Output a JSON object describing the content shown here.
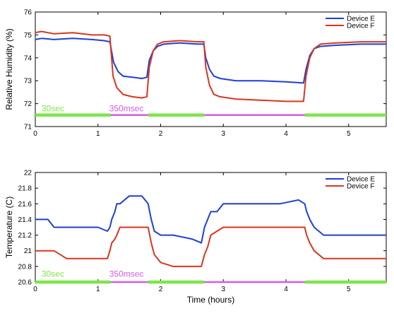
{
  "colors": {
    "device_e": "#1f3fd6",
    "device_f": "#d9361e",
    "mode_30sec": "#7ee64a",
    "mode_350msec": "#d35ae8"
  },
  "chart_data": [
    {
      "type": "line",
      "xlabel": "",
      "ylabel": "Relative Humidity (%)",
      "xlim": [
        0,
        5.6
      ],
      "ylim": [
        71,
        76
      ],
      "x_ticks": [
        "0",
        "1",
        "2",
        "3",
        "4",
        "5"
      ],
      "y_ticks": [
        "71",
        "72",
        "73",
        "74",
        "75",
        "76"
      ],
      "legend_position": "top-right",
      "series": [
        {
          "name": "Device E",
          "x": [
            0,
            0.1,
            0.3,
            0.6,
            0.9,
            1.1,
            1.19,
            1.25,
            1.32,
            1.4,
            1.55,
            1.7,
            1.78,
            1.82,
            1.88,
            1.95,
            2.05,
            2.3,
            2.6,
            2.69,
            2.72,
            2.78,
            2.85,
            2.95,
            3.2,
            3.6,
            4.0,
            4.28,
            4.32,
            4.38,
            4.45,
            4.55,
            4.8,
            5.2,
            5.6
          ],
          "y": [
            74.8,
            74.85,
            74.8,
            74.85,
            74.8,
            74.75,
            74.7,
            73.8,
            73.4,
            73.2,
            73.15,
            73.1,
            73.15,
            73.9,
            74.3,
            74.5,
            74.6,
            74.65,
            74.6,
            74.6,
            74.0,
            73.5,
            73.2,
            73.1,
            73.0,
            73.0,
            72.95,
            72.9,
            73.5,
            74.1,
            74.4,
            74.5,
            74.55,
            74.6,
            74.6
          ]
        },
        {
          "name": "Device F",
          "x": [
            0,
            0.1,
            0.3,
            0.6,
            0.9,
            1.1,
            1.19,
            1.24,
            1.3,
            1.4,
            1.55,
            1.7,
            1.78,
            1.82,
            1.88,
            1.95,
            2.05,
            2.3,
            2.6,
            2.69,
            2.72,
            2.78,
            2.85,
            2.95,
            3.2,
            3.6,
            4.0,
            4.28,
            4.32,
            4.38,
            4.45,
            4.55,
            4.8,
            5.2,
            5.6
          ],
          "y": [
            75.1,
            75.15,
            75.05,
            75.1,
            75.0,
            75.0,
            74.95,
            73.2,
            72.7,
            72.4,
            72.3,
            72.25,
            72.3,
            73.6,
            74.3,
            74.6,
            74.7,
            74.75,
            74.7,
            74.7,
            73.6,
            72.8,
            72.4,
            72.3,
            72.2,
            72.15,
            72.1,
            72.1,
            73.2,
            74.0,
            74.4,
            74.6,
            74.65,
            74.7,
            74.7
          ]
        }
      ],
      "mode_bar_y": 71.5,
      "mode_segments": [
        {
          "mode": "30sec",
          "start": 0,
          "end": 1.2
        },
        {
          "mode": "350msec",
          "start": 1.2,
          "end": 1.8
        },
        {
          "mode": "30sec",
          "start": 1.8,
          "end": 2.7
        },
        {
          "mode": "350msec",
          "start": 2.7,
          "end": 4.3
        },
        {
          "mode": "30sec",
          "start": 4.3,
          "end": 5.6
        }
      ],
      "annotations": [
        {
          "text": "30sec",
          "x": 0.1,
          "y": 71.6,
          "mode": "30sec"
        },
        {
          "text": "350msec",
          "x": 1.18,
          "y": 71.6,
          "mode": "350msec"
        }
      ]
    },
    {
      "type": "line",
      "xlabel": "Time (hours)",
      "ylabel": "Temperature (C)",
      "xlim": [
        0,
        5.6
      ],
      "ylim": [
        20.6,
        22
      ],
      "x_ticks": [
        "0",
        "1",
        "2",
        "3",
        "4",
        "5"
      ],
      "y_ticks": [
        "20.6",
        "20.8",
        "21",
        "21.2",
        "21.4",
        "21.6",
        "21.8",
        "22"
      ],
      "legend_position": "top-right",
      "series": [
        {
          "name": "Device E",
          "x": [
            0,
            0.2,
            0.3,
            0.5,
            0.8,
            1.0,
            1.15,
            1.19,
            1.22,
            1.27,
            1.3,
            1.35,
            1.5,
            1.7,
            1.8,
            1.85,
            1.9,
            2.0,
            2.2,
            2.5,
            2.65,
            2.7,
            2.75,
            2.8,
            2.9,
            3.0,
            3.3,
            3.6,
            3.9,
            4.2,
            4.3,
            4.33,
            4.38,
            4.45,
            4.6,
            4.9,
            5.2,
            5.6
          ],
          "y": [
            21.4,
            21.4,
            21.3,
            21.3,
            21.3,
            21.3,
            21.25,
            21.3,
            21.4,
            21.5,
            21.6,
            21.6,
            21.7,
            21.7,
            21.6,
            21.4,
            21.25,
            21.2,
            21.2,
            21.15,
            21.1,
            21.3,
            21.4,
            21.5,
            21.5,
            21.6,
            21.6,
            21.6,
            21.6,
            21.65,
            21.6,
            21.5,
            21.4,
            21.3,
            21.2,
            21.2,
            21.2,
            21.2
          ]
        },
        {
          "name": "Device F",
          "x": [
            0,
            0.1,
            0.3,
            0.5,
            0.8,
            1.0,
            1.15,
            1.19,
            1.22,
            1.27,
            1.3,
            1.35,
            1.5,
            1.7,
            1.8,
            1.85,
            1.9,
            2.0,
            2.2,
            2.5,
            2.65,
            2.7,
            2.75,
            2.8,
            2.9,
            3.0,
            3.3,
            3.6,
            3.9,
            4.2,
            4.3,
            4.33,
            4.38,
            4.45,
            4.6,
            4.9,
            5.2,
            5.6
          ],
          "y": [
            21.0,
            21.0,
            21.0,
            20.9,
            20.9,
            20.9,
            20.9,
            21.0,
            21.1,
            21.15,
            21.2,
            21.3,
            21.3,
            21.3,
            21.3,
            21.1,
            20.95,
            20.85,
            20.8,
            20.8,
            20.8,
            20.95,
            21.05,
            21.2,
            21.25,
            21.3,
            21.3,
            21.3,
            21.3,
            21.3,
            21.3,
            21.2,
            21.1,
            21.0,
            20.9,
            20.9,
            20.9,
            20.9
          ]
        }
      ],
      "mode_bar_y": 20.6,
      "mode_segments": [
        {
          "mode": "30sec",
          "start": 0,
          "end": 1.2
        },
        {
          "mode": "350msec",
          "start": 1.2,
          "end": 1.8
        },
        {
          "mode": "30sec",
          "start": 1.8,
          "end": 2.7
        },
        {
          "mode": "350msec",
          "start": 2.7,
          "end": 4.3
        },
        {
          "mode": "30sec",
          "start": 4.3,
          "end": 5.6
        }
      ],
      "annotations": [
        {
          "text": "30sec",
          "x": 0.1,
          "y": 20.65,
          "mode": "30sec"
        },
        {
          "text": "350msec",
          "x": 1.18,
          "y": 20.65,
          "mode": "350msec"
        }
      ]
    }
  ]
}
